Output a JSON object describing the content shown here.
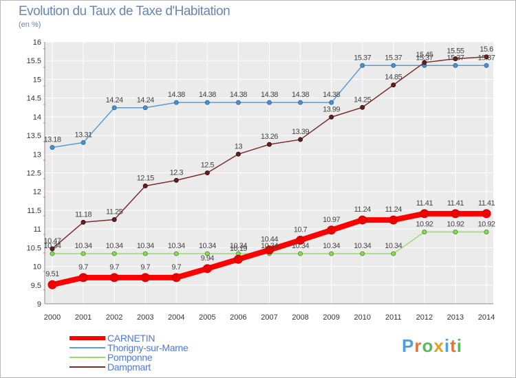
{
  "title": "Evolution du Taux de Taxe d'Habitation",
  "subtitle": "(en %)",
  "logo": {
    "text": "Proxiti",
    "letter_colors": [
      "#4aa3df",
      "#e8733a",
      "#5bb85c",
      "#e3a21a",
      "#4aa3df",
      "#e8733a",
      "#5bb85c"
    ]
  },
  "chart_data": {
    "type": "line",
    "x": [
      2000,
      2001,
      2002,
      2003,
      2004,
      2005,
      2006,
      2007,
      2008,
      2009,
      2010,
      2011,
      2012,
      2013,
      2014
    ],
    "ylim": [
      9,
      16
    ],
    "yticks": [
      "9",
      "9.5",
      "10",
      "10.5",
      "11",
      "11.5",
      "12",
      "12.5",
      "13",
      "13.5",
      "14",
      "14.5",
      "15",
      "15.5",
      "16"
    ],
    "grid": true,
    "series": [
      {
        "name": "CARNETIN",
        "color": "#ff0000",
        "values": [
          9.51,
          9.7,
          9.7,
          9.7,
          9.7,
          9.94,
          10.19,
          10.44,
          10.7,
          10.97,
          11.24,
          11.24,
          11.41,
          11.41,
          11.41
        ],
        "labels": [
          "9.51",
          "9.7",
          "9.7",
          "9.7",
          "9.7",
          "9.94",
          "10.19",
          "10.44",
          "10.7",
          "10.97",
          "11.24",
          "11.24",
          "11.41",
          "11.41",
          "11.41"
        ]
      },
      {
        "name": "Thorigny-sur-Marne",
        "color": "#5b9bd5",
        "values": [
          13.18,
          13.31,
          14.24,
          14.24,
          14.38,
          14.38,
          14.38,
          14.38,
          14.38,
          14.38,
          15.37,
          15.37,
          15.37,
          15.37,
          15.37
        ],
        "labels": [
          "13.18",
          "13.31",
          "14.24",
          "14.24",
          "14.38",
          "14.38",
          "14.38",
          "14.38",
          "14.38",
          "14.38",
          "15.37",
          "15.37",
          "15.37",
          "15.37",
          "15.37"
        ]
      },
      {
        "name": "Pomponne",
        "color": "#99dd66",
        "values": [
          10.34,
          10.34,
          10.34,
          10.34,
          10.34,
          10.34,
          10.34,
          10.34,
          10.34,
          10.34,
          10.34,
          10.34,
          10.92,
          10.92,
          10.92
        ],
        "labels": [
          "10.34",
          "10.34",
          "10.34",
          "10.34",
          "10.34",
          "10.34",
          "10.34",
          "10.34",
          "10.34",
          "10.34",
          "10.34",
          "10.34",
          "10.92",
          "10.92",
          "10.92"
        ]
      },
      {
        "name": "Dampmart",
        "color": "#7a2a2a",
        "values": [
          10.47,
          11.18,
          11.25,
          12.15,
          12.3,
          12.5,
          13.0,
          13.26,
          13.39,
          13.99,
          14.25,
          14.85,
          15.45,
          15.55,
          15.6
        ],
        "labels": [
          "10.47",
          "11.18",
          "11.25",
          "12.15",
          "12.3",
          "12.5",
          "13",
          "13.26",
          "13.39",
          "13.99",
          "14.25",
          "14.85",
          "15.45",
          "15.55",
          "15.6"
        ]
      }
    ]
  }
}
